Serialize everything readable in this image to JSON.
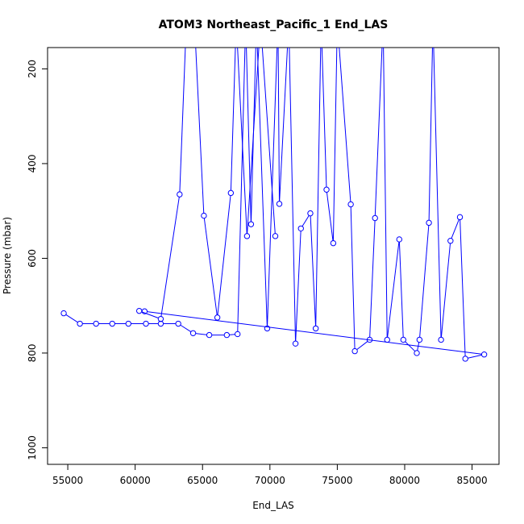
{
  "chart_data": {
    "type": "line",
    "title": "ATOM3 Northeast_Pacific_1 End_LAS",
    "xlabel": "End_LAS",
    "ylabel": "Pressure (mbar)",
    "xlim": [
      53500,
      87000
    ],
    "ylim": [
      1035,
      155
    ],
    "y_inverted": true,
    "xticks": [
      55000,
      60000,
      65000,
      70000,
      75000,
      80000,
      85000
    ],
    "yticks": [
      200,
      400,
      600,
      800,
      1000
    ],
    "line_color": "#0000ff",
    "marker": "open-circle",
    "grid": false,
    "legend": "none",
    "series": [
      {
        "points": [
          [
            54700,
            716
          ],
          [
            55900,
            738
          ],
          [
            57100,
            738
          ],
          [
            58300,
            738
          ],
          [
            59500,
            738
          ],
          [
            60800,
            738
          ],
          [
            61900,
            738
          ],
          [
            63200,
            738
          ],
          [
            64300,
            758
          ],
          [
            65500,
            762
          ],
          [
            66800,
            762
          ],
          [
            67600,
            760
          ],
          [
            68200,
            100
          ],
          [
            68600,
            528
          ],
          [
            69000,
            100
          ],
          [
            69800,
            748
          ],
          [
            70600,
            100
          ],
          [
            70700,
            485
          ],
          [
            71400,
            100
          ],
          [
            71900,
            780
          ],
          [
            72300,
            537
          ],
          [
            73000,
            505
          ],
          [
            73400,
            748
          ],
          [
            73800,
            100
          ],
          [
            74200,
            455
          ],
          [
            74700,
            568
          ],
          [
            75000,
            100
          ],
          [
            76000,
            486
          ],
          [
            76300,
            796
          ],
          [
            77400,
            772
          ],
          [
            77800,
            515
          ],
          [
            78400,
            100
          ],
          [
            78700,
            772
          ],
          [
            79600,
            560
          ],
          [
            79900,
            772
          ],
          [
            80900,
            800
          ],
          [
            81100,
            772
          ],
          [
            81800,
            525
          ],
          [
            82100,
            100
          ],
          [
            82700,
            772
          ],
          [
            83400,
            563
          ],
          [
            84100,
            513
          ],
          [
            84500,
            812
          ],
          [
            85900,
            803
          ],
          [
            60700,
            712
          ],
          [
            60300,
            711
          ],
          [
            61900,
            728
          ],
          [
            63300,
            465
          ],
          [
            63800,
            100
          ],
          [
            64400,
            100
          ],
          [
            65100,
            510
          ],
          [
            66100,
            725
          ],
          [
            67100,
            462
          ],
          [
            67500,
            100
          ],
          [
            68300,
            553
          ],
          [
            69300,
            100
          ],
          [
            70400,
            553
          ]
        ]
      }
    ]
  }
}
